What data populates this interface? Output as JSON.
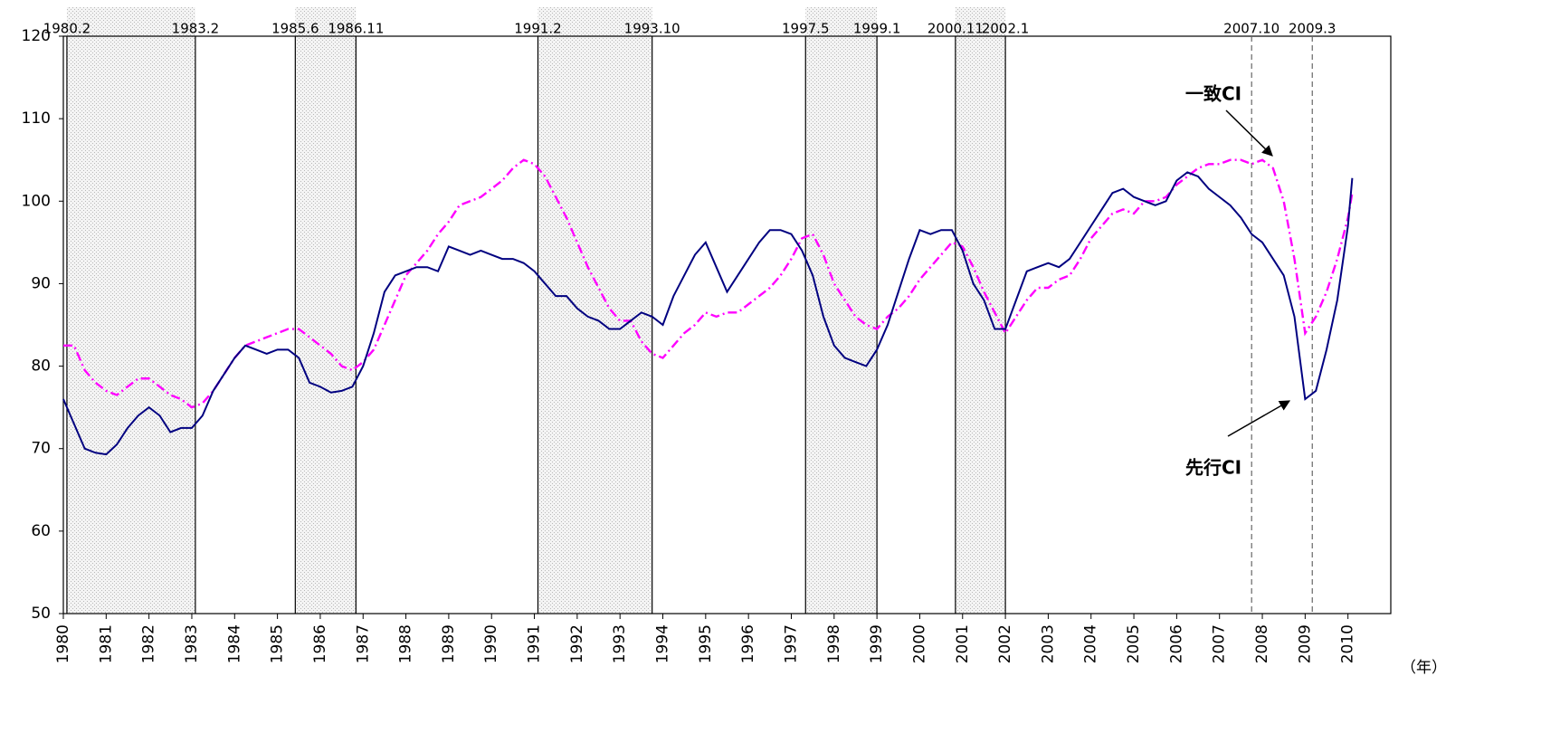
{
  "chart_data": {
    "type": "line",
    "x_unit_label": "（年）",
    "xlim": [
      1980,
      2011
    ],
    "xticks": [
      1980,
      1981,
      1982,
      1983,
      1984,
      1985,
      1986,
      1987,
      1988,
      1989,
      1990,
      1991,
      1992,
      1993,
      1994,
      1995,
      1996,
      1997,
      1998,
      1999,
      2000,
      2001,
      2002,
      2003,
      2004,
      2005,
      2006,
      2007,
      2008,
      2009,
      2010
    ],
    "ylim": [
      50,
      120
    ],
    "yticks": [
      50,
      60,
      70,
      80,
      90,
      100,
      110,
      120
    ],
    "recessions": [
      {
        "peak": "1980.2",
        "trough": "1983.2"
      },
      {
        "peak": "1985.6",
        "trough": "1986.11"
      },
      {
        "peak": "1991.2",
        "trough": "1993.10"
      },
      {
        "peak": "1997.5",
        "trough": "1999.1"
      },
      {
        "peak": "2000.11",
        "trough": "2002.1"
      }
    ],
    "tentative_turning_points": [
      "2007.10",
      "2009.3"
    ],
    "x": [
      1980,
      1980.25,
      1980.5,
      1980.75,
      1981,
      1981.25,
      1981.5,
      1981.75,
      1982,
      1982.25,
      1982.5,
      1982.75,
      1983,
      1983.25,
      1983.5,
      1983.75,
      1984,
      1984.25,
      1984.5,
      1984.75,
      1985,
      1985.25,
      1985.5,
      1985.75,
      1986,
      1986.25,
      1986.5,
      1986.75,
      1987,
      1987.25,
      1987.5,
      1987.75,
      1988,
      1988.25,
      1988.5,
      1988.75,
      1989,
      1989.25,
      1989.5,
      1989.75,
      1990,
      1990.25,
      1990.5,
      1990.75,
      1991,
      1991.25,
      1991.5,
      1991.75,
      1992,
      1992.25,
      1992.5,
      1992.75,
      1993,
      1993.25,
      1993.5,
      1993.75,
      1994,
      1994.25,
      1994.5,
      1994.75,
      1995,
      1995.25,
      1995.5,
      1995.75,
      1996,
      1996.25,
      1996.5,
      1996.75,
      1997,
      1997.25,
      1997.5,
      1997.75,
      1998,
      1998.25,
      1998.5,
      1998.75,
      1999,
      1999.25,
      1999.5,
      1999.75,
      2000,
      2000.25,
      2000.5,
      2000.75,
      2001,
      2001.25,
      2001.5,
      2001.75,
      2002,
      2002.25,
      2002.5,
      2002.75,
      2003,
      2003.25,
      2003.5,
      2003.75,
      2004,
      2004.25,
      2004.5,
      2004.75,
      2005,
      2005.25,
      2005.5,
      2005.75,
      2006,
      2006.25,
      2006.5,
      2006.75,
      2007,
      2007.25,
      2007.5,
      2007.75,
      2008,
      2008.25,
      2008.5,
      2008.75,
      2009,
      2009.25,
      2009.5,
      2009.75,
      2010,
      2010.1
    ],
    "series": [
      {
        "name": "先行CI",
        "color": "#000080",
        "dash": "solid",
        "values": [
          76,
          73,
          70,
          69.5,
          69.3,
          70.5,
          72.5,
          74,
          75,
          74,
          72,
          72.5,
          72.5,
          74,
          77,
          79,
          81,
          82.5,
          82,
          81.5,
          82,
          82,
          81,
          78,
          77.5,
          76.8,
          77,
          77.5,
          80,
          84,
          89,
          91,
          91.5,
          92,
          92,
          91.5,
          94.5,
          94,
          93.5,
          94,
          93.5,
          93,
          93,
          92.5,
          91.5,
          90,
          88.5,
          88.5,
          87,
          86,
          85.5,
          84.5,
          84.5,
          85.5,
          86.5,
          86,
          85,
          88.5,
          91,
          93.5,
          95,
          92,
          89,
          91,
          93,
          95,
          96.5,
          96.5,
          96,
          94,
          91,
          86,
          82.5,
          81,
          80.5,
          80,
          82,
          85,
          89,
          93,
          96.5,
          96,
          96.5,
          96.5,
          94,
          90,
          88,
          84.5,
          84.5,
          88,
          91.5,
          92,
          92.5,
          92,
          93,
          95,
          97,
          99,
          101,
          101.5,
          100.5,
          100,
          99.5,
          100,
          102.5,
          103.5,
          103,
          101.5,
          100.5,
          99.5,
          98,
          96,
          95,
          93,
          91,
          86,
          76,
          77,
          82,
          88,
          97,
          102.8
        ]
      },
      {
        "name": "一致CI",
        "color": "#ff00ff",
        "dash": "dashdot",
        "values": [
          82.5,
          82.5,
          79.5,
          78,
          77,
          76.5,
          77.5,
          78.5,
          78.5,
          77.5,
          76.5,
          76,
          75,
          75.5,
          77,
          79,
          81,
          82.5,
          83,
          83.5,
          84,
          84.5,
          84.5,
          83.5,
          82.5,
          81.5,
          80,
          79.5,
          80.5,
          82,
          85,
          88,
          91,
          92.5,
          94,
          96,
          97.5,
          99.5,
          100,
          100.5,
          101.5,
          102.5,
          104,
          105,
          104.5,
          103,
          100.5,
          98,
          95,
          92,
          89.5,
          87,
          85.5,
          85.5,
          83,
          81.5,
          81,
          82.5,
          84,
          85,
          86.5,
          86,
          86.5,
          86.5,
          87.5,
          88.5,
          89.5,
          91,
          93,
          95.5,
          96,
          93.5,
          90,
          88,
          86,
          85,
          84.5,
          86,
          87,
          88.5,
          90.5,
          92,
          93.5,
          95,
          94.5,
          92,
          89,
          86.5,
          84,
          86,
          88,
          89.5,
          89.5,
          90.5,
          91,
          93,
          95.5,
          97,
          98.5,
          99,
          98.5,
          100,
          100,
          100.5,
          102,
          103,
          104,
          104.5,
          104.5,
          105,
          105,
          104.5,
          105,
          104,
          100,
          93,
          84,
          86,
          89,
          93,
          98,
          101
        ]
      }
    ]
  }
}
